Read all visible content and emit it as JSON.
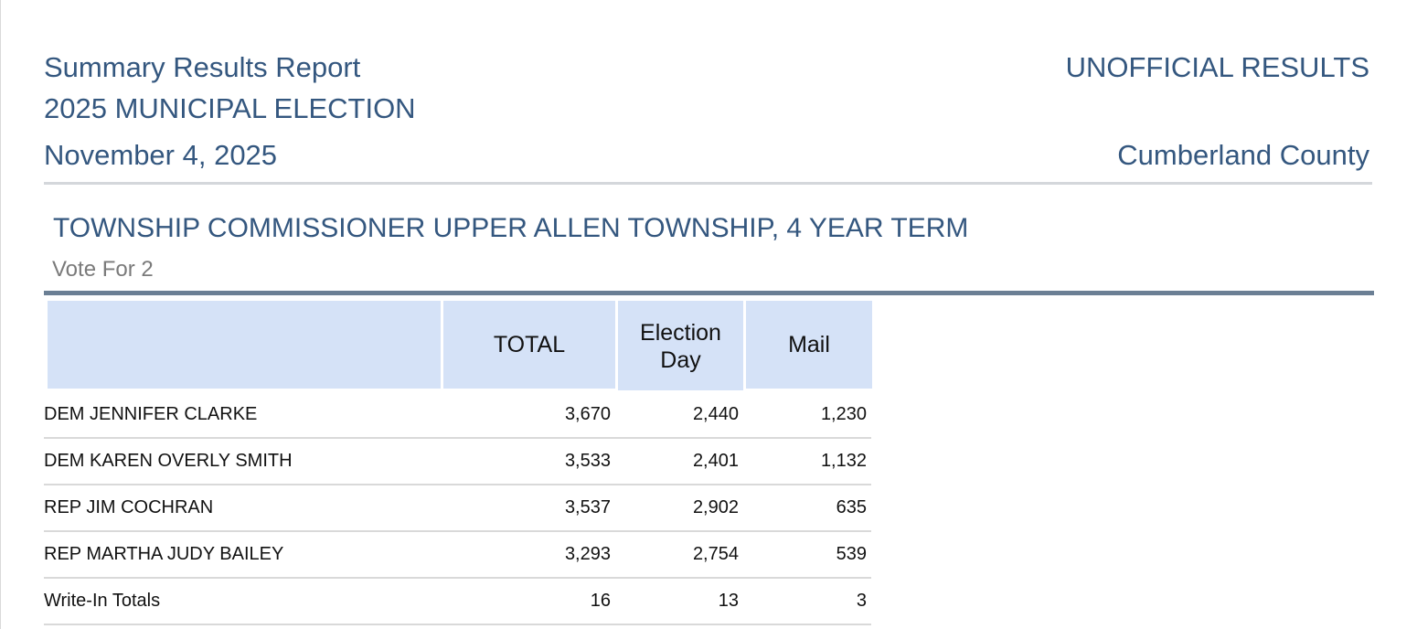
{
  "report": {
    "title": "Summary Results Report",
    "status": "UNOFFICIAL RESULTS",
    "election_name": "2025 MUNICIPAL ELECTION",
    "date": "November 4, 2025",
    "county": "Cumberland County"
  },
  "contest": {
    "title": "TOWNSHIP COMMISSIONER UPPER ALLEN TOWNSHIP, 4 YEAR TERM",
    "vote_for": "Vote For 2",
    "columns": [
      "TOTAL",
      "Election Day",
      "Mail"
    ],
    "rows": [
      {
        "name": "DEM JENNIFER CLARKE",
        "total": "3,670",
        "election_day": "2,440",
        "mail": "1,230"
      },
      {
        "name": "DEM KAREN OVERLY SMITH",
        "total": "3,533",
        "election_day": "2,401",
        "mail": "1,132"
      },
      {
        "name": "REP JIM COCHRAN",
        "total": "3,537",
        "election_day": "2,902",
        "mail": "635"
      },
      {
        "name": "REP MARTHA JUDY BAILEY",
        "total": "3,293",
        "election_day": "2,754",
        "mail": "539"
      },
      {
        "name": "Write-In Totals",
        "total": "16",
        "election_day": "13",
        "mail": "3"
      }
    ]
  }
}
